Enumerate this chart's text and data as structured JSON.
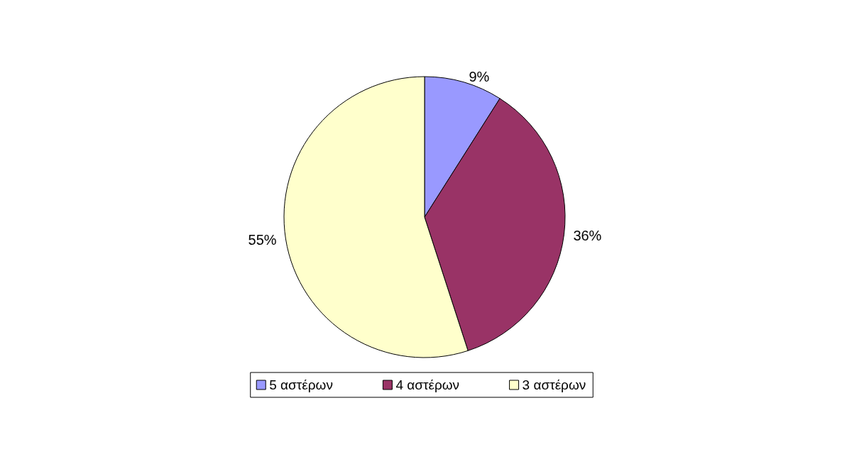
{
  "chart_data": {
    "type": "pie",
    "categories": [
      "5 αστέρων",
      "4 αστέρων",
      "3 αστέρων"
    ],
    "values": [
      9,
      36,
      55
    ],
    "colors": [
      "#9999ff",
      "#993366",
      "#ffffcc"
    ],
    "value_labels": [
      "9%",
      "36%",
      "55%"
    ],
    "legend": "bottom"
  }
}
